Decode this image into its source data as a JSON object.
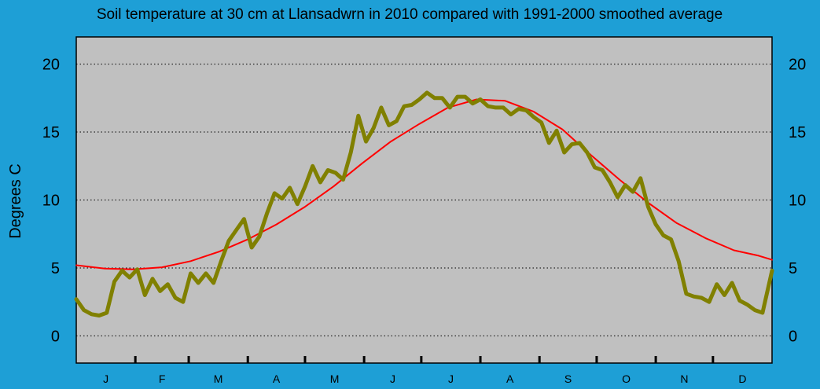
{
  "chart_data": {
    "type": "line",
    "title": "Soil temperature at 30 cm at Llansadwrn in 2010 compared with 1991-2000 smoothed average",
    "ylabel": "Degrees  C",
    "xlabel": "",
    "ylim": [
      -2,
      22
    ],
    "xlim": [
      0,
      365
    ],
    "y_ticks": [
      0,
      5,
      10,
      15,
      20
    ],
    "grid": "horizontal dotted",
    "months": [
      "J",
      "F",
      "M",
      "A",
      "M",
      "J",
      "J",
      "A",
      "S",
      "O",
      "N",
      "D"
    ],
    "series": [
      {
        "color": "#ff0000",
        "x": [
          0,
          15,
          30,
          45,
          60,
          75,
          90,
          105,
          120,
          135,
          150,
          165,
          180,
          195,
          210,
          225,
          240,
          255,
          270,
          285,
          300,
          315,
          330,
          345,
          358,
          365
        ],
        "values": [
          5.2,
          4.95,
          4.9,
          5.05,
          5.5,
          6.2,
          7.1,
          8.2,
          9.5,
          11.0,
          12.7,
          14.3,
          15.6,
          16.8,
          17.4,
          17.3,
          16.5,
          15.2,
          13.3,
          11.5,
          9.8,
          8.3,
          7.2,
          6.3,
          5.9,
          5.6
        ],
        "width": 2
      },
      {
        "color": "#808000",
        "x": [
          0,
          4,
          8,
          12,
          16,
          20,
          24,
          28,
          32,
          36,
          40,
          44,
          48,
          52,
          56,
          60,
          64,
          68,
          72,
          76,
          80,
          84,
          88,
          92,
          96,
          100,
          104,
          108,
          112,
          116,
          120,
          124,
          128,
          132,
          136,
          140,
          144,
          148,
          152,
          156,
          160,
          164,
          168,
          172,
          176,
          180,
          184,
          188,
          192,
          196,
          200,
          204,
          208,
          212,
          216,
          220,
          224,
          228,
          232,
          236,
          240,
          244,
          248,
          252,
          256,
          260,
          264,
          268,
          272,
          276,
          280,
          284,
          288,
          292,
          296,
          300,
          304,
          308,
          312,
          316,
          320,
          324,
          328,
          332,
          336,
          340,
          344,
          348,
          352,
          356,
          360,
          365
        ],
        "values": [
          2.7,
          1.9,
          1.6,
          1.5,
          1.7,
          4.0,
          4.8,
          4.3,
          4.9,
          3.0,
          4.2,
          3.3,
          3.8,
          2.8,
          2.5,
          4.6,
          3.9,
          4.6,
          3.9,
          5.5,
          7.0,
          7.8,
          8.6,
          6.5,
          7.3,
          9.0,
          10.5,
          10.1,
          10.9,
          9.7,
          11.0,
          12.5,
          11.3,
          12.2,
          12.0,
          11.5,
          13.5,
          16.2,
          14.3,
          15.3,
          16.8,
          15.5,
          15.8,
          16.9,
          17.0,
          17.4,
          17.9,
          17.5,
          17.5,
          16.8,
          17.6,
          17.6,
          17.1,
          17.4,
          16.9,
          16.8,
          16.8,
          16.3,
          16.7,
          16.6,
          16.1,
          15.7,
          14.2,
          15.1,
          13.5,
          14.1,
          14.2,
          13.5,
          12.4,
          12.2,
          11.3,
          10.2,
          11.1,
          10.6,
          11.6,
          9.5,
          8.2,
          7.4,
          7.1,
          5.5,
          3.1,
          2.9,
          2.8,
          2.5,
          3.8,
          3.0,
          3.9,
          2.6,
          2.3,
          1.9,
          1.7,
          4.8
        ],
        "width": 5
      }
    ]
  }
}
